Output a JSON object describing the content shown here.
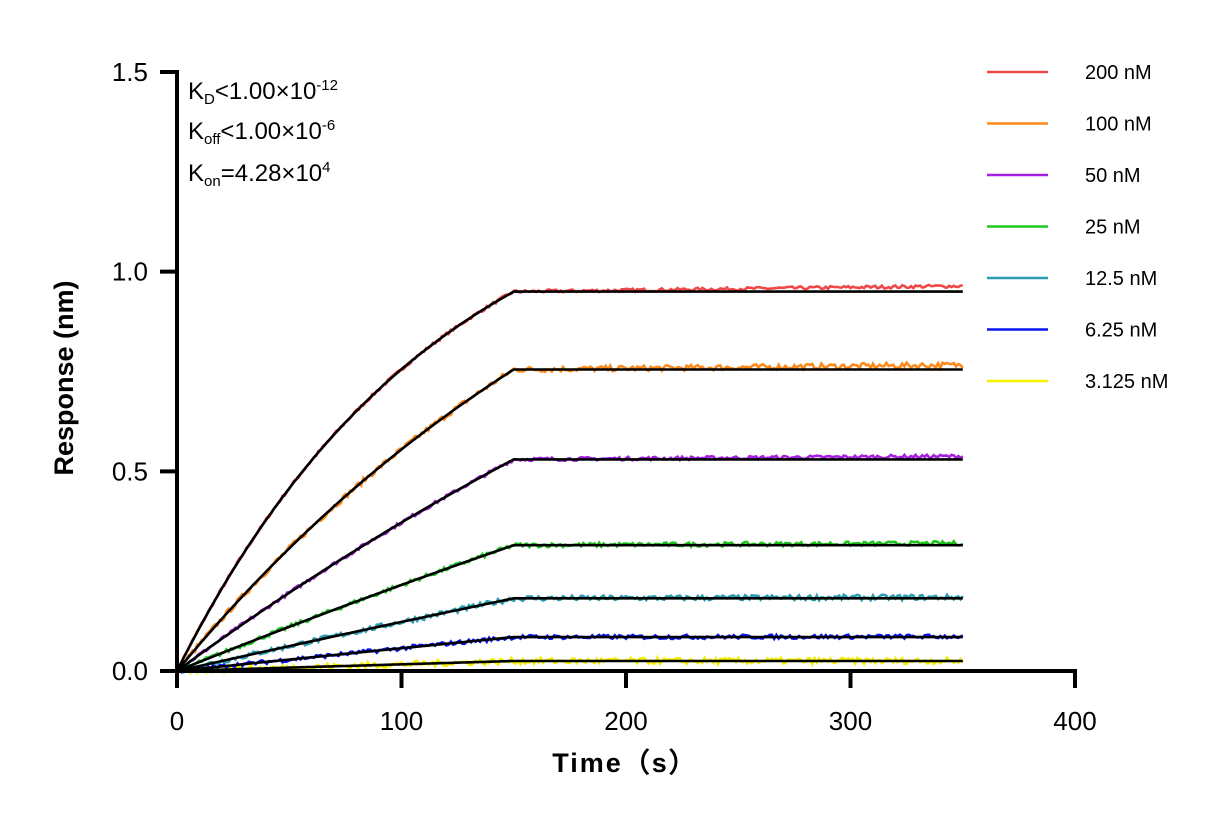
{
  "chart_data": {
    "type": "line",
    "xlabel": "Time（s）",
    "ylabel": "Response (nm)",
    "xlim": [
      0,
      400
    ],
    "ylim": [
      0,
      1.5
    ],
    "xticks": [
      "0",
      "100",
      "200",
      "300",
      "400"
    ],
    "yticks": [
      "0.0",
      "0.5",
      "1.0",
      "1.5"
    ],
    "xtick_values": [
      0,
      100,
      200,
      300,
      400
    ],
    "ytick_values": [
      0,
      0.5,
      1.0,
      1.5
    ],
    "grid": false,
    "legend_position": "top-right",
    "association_end": 150,
    "dissociation_end": 350,
    "fit_color": "#000000",
    "kon": 42800,
    "annotations": {
      "kd": {
        "k": "K",
        "sub": "D",
        "rel": "<1.00×10",
        "exp": "-12"
      },
      "koff": {
        "k": "K",
        "sub": "off",
        "rel": "<1.00×10",
        "exp": "-6"
      },
      "kon": {
        "k": "K",
        "sub": "on",
        "rel": "=4.28×10",
        "exp": "4"
      }
    },
    "series": [
      {
        "name": "200 nM",
        "conc_nM": 200,
        "plateau": 0.95,
        "color": "#f04848"
      },
      {
        "name": "100 nM",
        "conc_nM": 100,
        "plateau": 0.755,
        "color": "#ff8a1a"
      },
      {
        "name": "50 nM",
        "conc_nM": 50,
        "plateau": 0.53,
        "color": "#a41fe0"
      },
      {
        "name": "25 nM",
        "conc_nM": 25,
        "plateau": 0.315,
        "color": "#1fc81f"
      },
      {
        "name": "12.5 nM",
        "conc_nM": 12.5,
        "plateau": 0.182,
        "color": "#2a9fb3"
      },
      {
        "name": "6.25 nM",
        "conc_nM": 6.25,
        "plateau": 0.085,
        "color": "#0a14f0"
      },
      {
        "name": "3.125 nM",
        "conc_nM": 3.125,
        "plateau": 0.025,
        "color": "#f5f000"
      }
    ]
  }
}
